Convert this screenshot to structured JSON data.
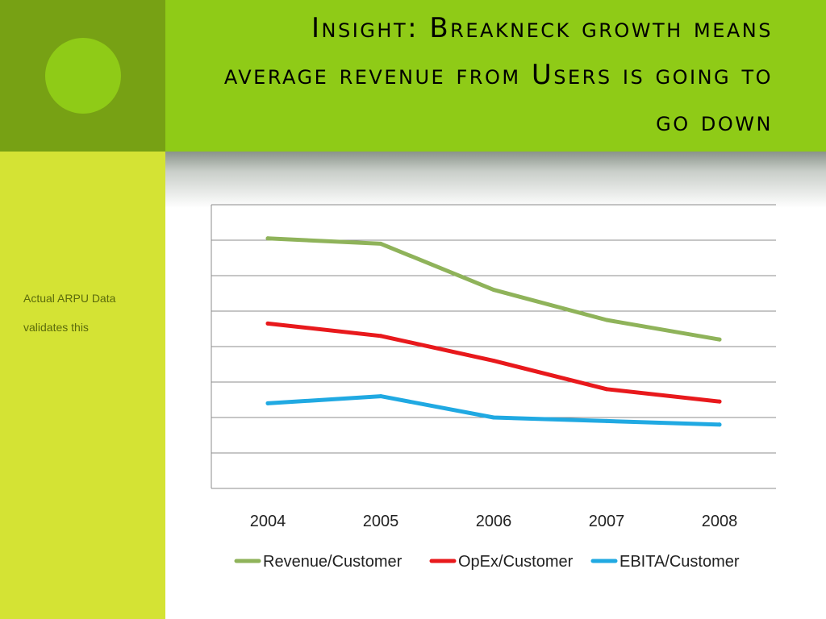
{
  "slide": {
    "title": "Insight: Breakneck growth means average revenue from Users is going to go down",
    "note_line1": "Actual ARPU Data",
    "note_line2": "validates this"
  },
  "colors": {
    "left_dark": "#77a114",
    "header_green": "#8fcb17",
    "left_light": "#d4e334",
    "revenue": "#8fb35a",
    "opex": "#e8191c",
    "ebita": "#20a9e2"
  },
  "chart_data": {
    "type": "line",
    "categories": [
      "2004",
      "2005",
      "2006",
      "2007",
      "2008"
    ],
    "ylim": [
      0,
      8
    ],
    "grid": true,
    "legend_position": "bottom",
    "series": [
      {
        "name": "Revenue/Customer",
        "color": "#8fb35a",
        "values": [
          7.05,
          6.9,
          5.6,
          4.75,
          4.2
        ]
      },
      {
        "name": "OpEx/Customer",
        "color": "#e8191c",
        "values": [
          4.65,
          4.3,
          3.6,
          2.8,
          2.45
        ]
      },
      {
        "name": "EBITA/Customer",
        "color": "#20a9e2",
        "values": [
          2.4,
          2.6,
          2.0,
          1.9,
          1.8
        ]
      }
    ]
  }
}
